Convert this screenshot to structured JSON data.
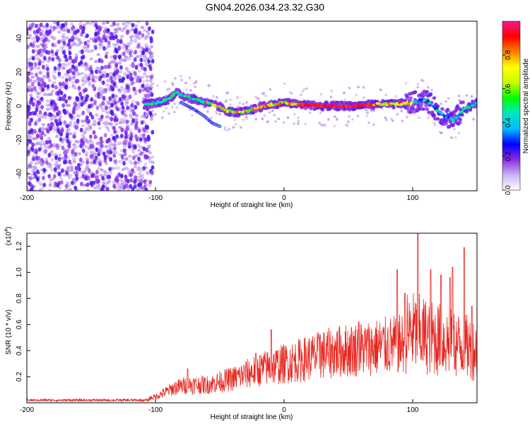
{
  "title": "GN04.2026.034.23.32.G30",
  "chart_data": [
    {
      "type": "heatmap",
      "xlabel": "Height of straight line (km)",
      "ylabel": "Frequency (Hz)",
      "xlim": [
        -200,
        150
      ],
      "ylim": [
        -50,
        50
      ],
      "xticks": [
        {
          "value": -200,
          "label": "-200"
        },
        {
          "value": -100,
          "label": "-100"
        },
        {
          "value": 0,
          "label": "0"
        },
        {
          "value": 100,
          "label": "100"
        }
      ],
      "yticks": [
        {
          "value": -40,
          "label": "-40"
        },
        {
          "value": -20,
          "label": "-20"
        },
        {
          "value": 0,
          "label": "0"
        },
        {
          "value": 20,
          "label": "20"
        },
        {
          "value": 40,
          "label": "40"
        }
      ],
      "noise_region": {
        "x_start": -200,
        "x_end": -102
      },
      "ridge": [
        {
          "x": -107,
          "f": 1
        },
        {
          "x": -98,
          "f": 2
        },
        {
          "x": -90,
          "f": 4
        },
        {
          "x": -84,
          "f": 8
        },
        {
          "x": -78,
          "f": 6
        },
        {
          "x": -70,
          "f": 4
        },
        {
          "x": -60,
          "f": 2
        },
        {
          "x": -52,
          "f": 0
        },
        {
          "x": -44,
          "f": -3
        },
        {
          "x": -36,
          "f": -4
        },
        {
          "x": -28,
          "f": -3
        },
        {
          "x": -20,
          "f": -1
        },
        {
          "x": -10,
          "f": 1
        },
        {
          "x": 0,
          "f": 2
        },
        {
          "x": 10,
          "f": 1
        },
        {
          "x": 30,
          "f": 0
        },
        {
          "x": 50,
          "f": 0
        },
        {
          "x": 70,
          "f": 1
        },
        {
          "x": 85,
          "f": 1
        },
        {
          "x": 100,
          "f": 2
        },
        {
          "x": 110,
          "f": 4
        },
        {
          "x": 118,
          "f": -2
        },
        {
          "x": 125,
          "f": -6
        },
        {
          "x": 132,
          "f": -8
        },
        {
          "x": 140,
          "f": -2
        },
        {
          "x": 150,
          "f": 2
        }
      ],
      "branch": [
        {
          "x": -80,
          "f": 2
        },
        {
          "x": -70,
          "f": -2
        },
        {
          "x": -62,
          "f": -6
        },
        {
          "x": -56,
          "f": -10
        },
        {
          "x": -50,
          "f": -12
        }
      ],
      "colorbar": {
        "label": "Normalized spectral amplitude",
        "range": [
          0,
          1
        ],
        "ticks": [
          {
            "value": 0.0,
            "label": "0.0"
          },
          {
            "value": 0.2,
            "label": "0.2"
          },
          {
            "value": 0.4,
            "label": "0.4"
          },
          {
            "value": 0.6,
            "label": "0.6"
          },
          {
            "value": 0.8,
            "label": "0.8"
          }
        ],
        "colors": [
          "#ffffff",
          "#c9b2f5",
          "#8a2be2",
          "#0000ff",
          "#00bfff",
          "#00e5c0",
          "#00ff00",
          "#c8ff00",
          "#ffff00",
          "#ff8000",
          "#ff0000",
          "#ff1493"
        ]
      }
    },
    {
      "type": "line",
      "xlabel": "Height of straight line (km)",
      "ylabel": "SNR (10 * v/v)",
      "scale_label": "(x10",
      "scale_exponent": "4",
      "scale_close": ")",
      "color": "#e8261f",
      "xlim": [
        -200,
        150
      ],
      "ylim": [
        0,
        1.3
      ],
      "xticks": [
        {
          "value": -200,
          "label": "-200"
        },
        {
          "value": -100,
          "label": "-100"
        },
        {
          "value": 0,
          "label": "0"
        },
        {
          "value": 100,
          "label": "100"
        }
      ],
      "yticks": [
        {
          "value": 0.2,
          "label": "0.2"
        },
        {
          "value": 0.4,
          "label": "0.4"
        },
        {
          "value": 0.6,
          "label": "0.6"
        },
        {
          "value": 0.8,
          "label": "0.8"
        },
        {
          "value": 1.0,
          "label": "1.0"
        },
        {
          "value": 1.2,
          "label": "1.2"
        }
      ],
      "envelope": [
        {
          "x": -200,
          "y": 0.02
        },
        {
          "x": -110,
          "y": 0.02
        },
        {
          "x": -100,
          "y": 0.04
        },
        {
          "x": -85,
          "y": 0.1
        },
        {
          "x": -75,
          "y": 0.12
        },
        {
          "x": -60,
          "y": 0.12
        },
        {
          "x": -40,
          "y": 0.16
        },
        {
          "x": -20,
          "y": 0.22
        },
        {
          "x": 0,
          "y": 0.26
        },
        {
          "x": 20,
          "y": 0.3
        },
        {
          "x": 40,
          "y": 0.34
        },
        {
          "x": 60,
          "y": 0.36
        },
        {
          "x": 80,
          "y": 0.38
        },
        {
          "x": 100,
          "y": 0.4
        },
        {
          "x": 120,
          "y": 0.36
        },
        {
          "x": 140,
          "y": 0.32
        },
        {
          "x": 150,
          "y": 0.3
        }
      ],
      "spikes": [
        {
          "x": -75,
          "y": 0.26
        },
        {
          "x": -22,
          "y": 0.38
        },
        {
          "x": -10,
          "y": 0.56
        },
        {
          "x": 28,
          "y": 0.52
        },
        {
          "x": 58,
          "y": 0.62
        },
        {
          "x": 88,
          "y": 1.02
        },
        {
          "x": 94,
          "y": 0.84
        },
        {
          "x": 104,
          "y": 1.3
        },
        {
          "x": 114,
          "y": 1.02
        },
        {
          "x": 122,
          "y": 0.98
        },
        {
          "x": 129,
          "y": 0.96
        },
        {
          "x": 131,
          "y": 1.04
        },
        {
          "x": 140,
          "y": 1.19
        },
        {
          "x": 146,
          "y": 0.74
        }
      ]
    }
  ]
}
